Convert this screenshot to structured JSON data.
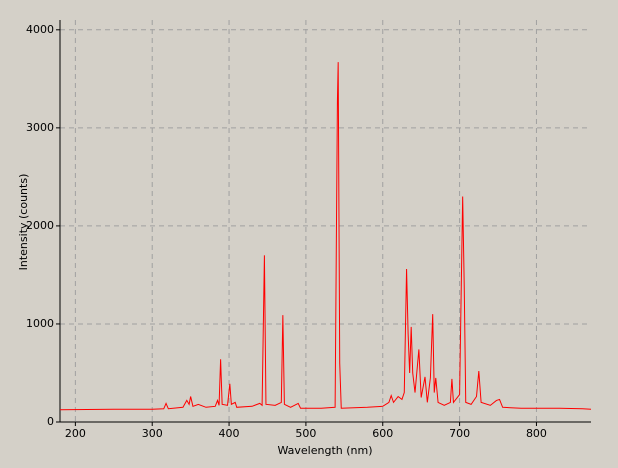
{
  "chart_data": {
    "type": "line",
    "xlabel": "Wavelength (nm)",
    "ylabel": "Intensity (counts)",
    "xlim": [
      180,
      871
    ],
    "ylim": [
      0,
      4100
    ],
    "xticks": [
      200,
      300,
      400,
      500,
      600,
      700,
      800
    ],
    "yticks": [
      0,
      1000,
      2000,
      3000,
      4000
    ],
    "grid": true,
    "series": [
      {
        "color": "#ff0000",
        "x": [
          180,
          250,
          300,
          315,
          318,
          321,
          340,
          345,
          348,
          350,
          353,
          360,
          370,
          382,
          385,
          387,
          389,
          391,
          398,
          401,
          403,
          408,
          410,
          430,
          440,
          443,
          446,
          448,
          460,
          468,
          470,
          472,
          480,
          490,
          493,
          520,
          538,
          541,
          542,
          544,
          546,
          580,
          600,
          608,
          611,
          614,
          620,
          625,
          628,
          631,
          633,
          635,
          637,
          639,
          642,
          647,
          650,
          655,
          658,
          662,
          665,
          667,
          669,
          672,
          680,
          688,
          690,
          692,
          700,
          704,
          706,
          708,
          715,
          722,
          725,
          728,
          740,
          748,
          752,
          756,
          780,
          800,
          830,
          860,
          871
        ],
        "values": [
          125,
          130,
          130,
          135,
          190,
          135,
          150,
          220,
          180,
          260,
          160,
          180,
          150,
          160,
          220,
          170,
          640,
          180,
          170,
          390,
          180,
          200,
          150,
          160,
          190,
          170,
          1700,
          180,
          170,
          200,
          1090,
          180,
          150,
          190,
          140,
          140,
          150,
          3270,
          3670,
          600,
          140,
          150,
          160,
          200,
          270,
          200,
          260,
          230,
          300,
          1560,
          900,
          500,
          970,
          500,
          300,
          740,
          250,
          460,
          200,
          450,
          1100,
          300,
          450,
          200,
          170,
          200,
          440,
          200,
          280,
          2300,
          1400,
          200,
          180,
          260,
          520,
          200,
          170,
          220,
          230,
          150,
          140,
          140,
          140,
          135,
          130
        ]
      }
    ]
  }
}
